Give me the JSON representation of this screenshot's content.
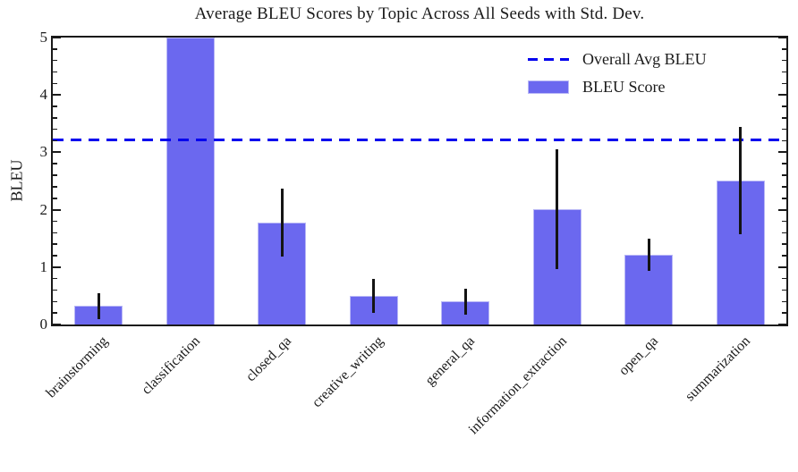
{
  "title": "Average BLEU Scores by Topic Across All Seeds with Std. Dev.",
  "chart_data": {
    "type": "bar",
    "title": "Average BLEU Scores by Topic Across All Seeds with Std. Dev.",
    "xlabel": "",
    "ylabel": "BLEU",
    "ylim": [
      0,
      5
    ],
    "yticks": [
      0,
      1,
      2,
      3,
      4,
      5
    ],
    "minor_tick_step": 0.2,
    "grid": false,
    "legend_position": "upper right",
    "legend_entries": [
      {
        "label": "Overall Avg BLEU",
        "type": "dashed-line",
        "color": "#0101ee"
      },
      {
        "label": "BLEU Score",
        "type": "bar-swatch",
        "color": "#6b68ef"
      }
    ],
    "categories": [
      "brainstorming",
      "classification",
      "closed_qa",
      "creative_writing",
      "general_qa",
      "information_extraction",
      "open_qa",
      "summarization"
    ],
    "series": [
      {
        "name": "BLEU Score",
        "values": [
          0.32,
          5.0,
          1.77,
          0.5,
          0.4,
          2.01,
          1.22,
          2.51
        ],
        "std_dev": [
          0.23,
          null,
          0.59,
          0.3,
          0.23,
          1.05,
          0.28,
          0.94
        ],
        "color": "#6b68ef"
      }
    ],
    "overall_avg_line": {
      "label": "Overall Avg BLEU",
      "value": 3.22,
      "style": "dashed",
      "color": "#0101ee"
    },
    "clipped_note": "classification bar is clipped at the y-axis maximum of 5",
    "colors": {
      "bar": "#6b68ef",
      "bar_edge": "#b9b8f6",
      "avg_line": "#0101ee",
      "error_bar": "#141414",
      "axis": "#1a1a1a"
    }
  }
}
